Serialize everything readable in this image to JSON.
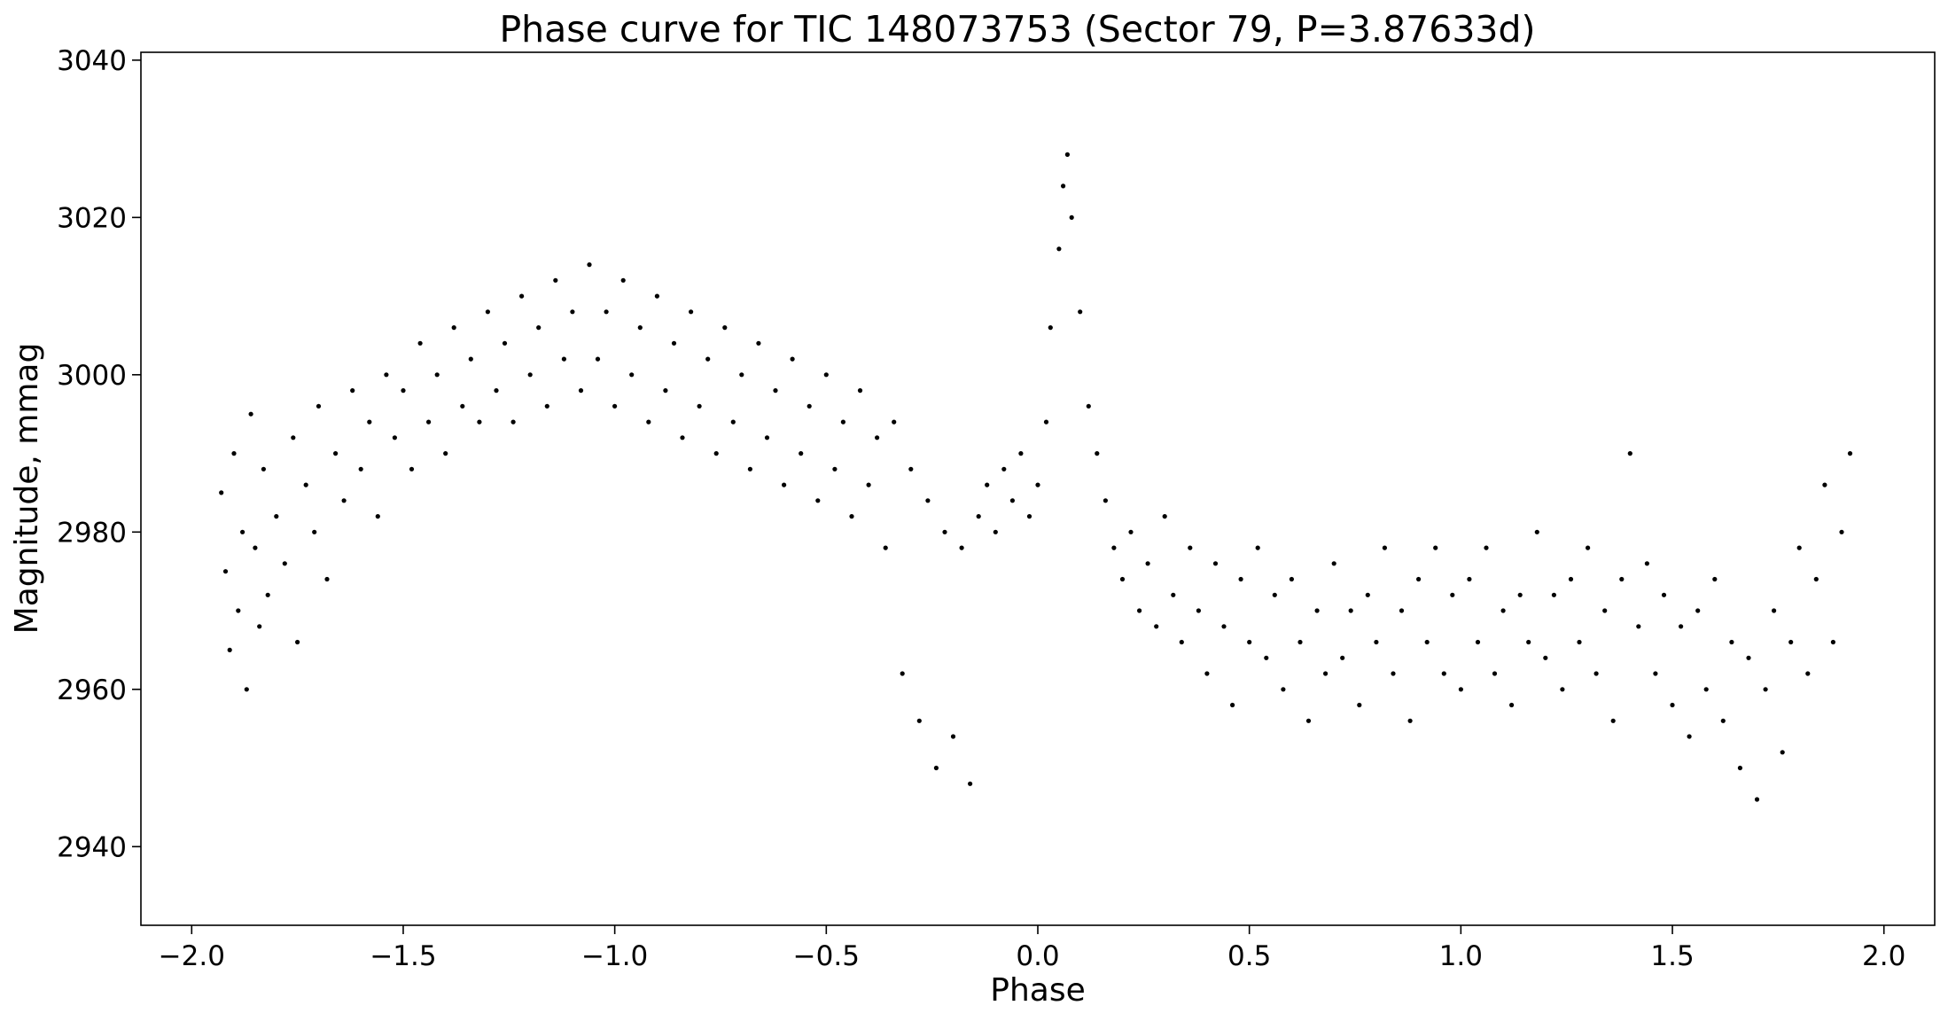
{
  "chart_data": {
    "type": "scatter",
    "title": "Phase curve for TIC 148073753 (Sector 79, P=3.87633d)",
    "xlabel": "Phase",
    "ylabel": "Magnitude, mmag",
    "xlim": [
      -2.12,
      2.12
    ],
    "ylim": [
      2930,
      3041
    ],
    "x_ticks": [
      -2.0,
      -1.5,
      -1.0,
      -0.5,
      0.0,
      0.5,
      1.0,
      1.5,
      2.0
    ],
    "x_tick_labels": [
      "−2.0",
      "−1.5",
      "−1.0",
      "−0.5",
      "0.0",
      "0.5",
      "1.0",
      "1.5",
      "2.0"
    ],
    "y_ticks": [
      2940,
      2960,
      2980,
      3000,
      3020,
      3040
    ],
    "y_tick_labels": [
      "2940",
      "2960",
      "2980",
      "3000",
      "3020",
      "3040"
    ],
    "grid": false,
    "legend": "none",
    "point_color": "#000000",
    "series": [
      {
        "points": [
          [
            -1.93,
            2985
          ],
          [
            -1.92,
            2975
          ],
          [
            -1.91,
            2965
          ],
          [
            -1.9,
            2990
          ],
          [
            -1.89,
            2970
          ],
          [
            -1.88,
            2980
          ],
          [
            -1.87,
            2960
          ],
          [
            -1.86,
            2995
          ],
          [
            -1.85,
            2978
          ],
          [
            -1.84,
            2968
          ],
          [
            -1.83,
            2988
          ],
          [
            -1.82,
            2972
          ],
          [
            -1.8,
            2982
          ],
          [
            -1.78,
            2976
          ],
          [
            -1.76,
            2992
          ],
          [
            -1.75,
            2966
          ],
          [
            -1.73,
            2986
          ],
          [
            -1.71,
            2980
          ],
          [
            -1.7,
            2996
          ],
          [
            -1.68,
            2974
          ],
          [
            -1.66,
            2990
          ],
          [
            -1.64,
            2984
          ],
          [
            -1.62,
            2998
          ],
          [
            -1.6,
            2988
          ],
          [
            -1.58,
            2994
          ],
          [
            -1.56,
            2982
          ],
          [
            -1.54,
            3000
          ],
          [
            -1.52,
            2992
          ],
          [
            -1.5,
            2998
          ],
          [
            -1.48,
            2988
          ],
          [
            -1.46,
            3004
          ],
          [
            -1.44,
            2994
          ],
          [
            -1.42,
            3000
          ],
          [
            -1.4,
            2990
          ],
          [
            -1.38,
            3006
          ],
          [
            -1.36,
            2996
          ],
          [
            -1.34,
            3002
          ],
          [
            -1.32,
            2994
          ],
          [
            -1.3,
            3008
          ],
          [
            -1.28,
            2998
          ],
          [
            -1.26,
            3004
          ],
          [
            -1.24,
            2994
          ],
          [
            -1.22,
            3010
          ],
          [
            -1.2,
            3000
          ],
          [
            -1.18,
            3006
          ],
          [
            -1.16,
            2996
          ],
          [
            -1.14,
            3012
          ],
          [
            -1.12,
            3002
          ],
          [
            -1.1,
            3008
          ],
          [
            -1.08,
            2998
          ],
          [
            -1.06,
            3014
          ],
          [
            -1.04,
            3002
          ],
          [
            -1.02,
            3008
          ],
          [
            -1.0,
            2996
          ],
          [
            -0.98,
            3012
          ],
          [
            -0.96,
            3000
          ],
          [
            -0.94,
            3006
          ],
          [
            -0.92,
            2994
          ],
          [
            -0.9,
            3010
          ],
          [
            -0.88,
            2998
          ],
          [
            -0.86,
            3004
          ],
          [
            -0.84,
            2992
          ],
          [
            -0.82,
            3008
          ],
          [
            -0.8,
            2996
          ],
          [
            -0.78,
            3002
          ],
          [
            -0.76,
            2990
          ],
          [
            -0.74,
            3006
          ],
          [
            -0.72,
            2994
          ],
          [
            -0.7,
            3000
          ],
          [
            -0.68,
            2988
          ],
          [
            -0.66,
            3004
          ],
          [
            -0.64,
            2992
          ],
          [
            -0.62,
            2998
          ],
          [
            -0.6,
            2986
          ],
          [
            -0.58,
            3002
          ],
          [
            -0.56,
            2990
          ],
          [
            -0.54,
            2996
          ],
          [
            -0.52,
            2984
          ],
          [
            -0.5,
            3000
          ],
          [
            -0.48,
            2988
          ],
          [
            -0.46,
            2994
          ],
          [
            -0.44,
            2982
          ],
          [
            -0.42,
            2998
          ],
          [
            -0.4,
            2986
          ],
          [
            -0.38,
            2992
          ],
          [
            -0.36,
            2978
          ],
          [
            -0.34,
            2994
          ],
          [
            -0.32,
            2962
          ],
          [
            -0.3,
            2988
          ],
          [
            -0.28,
            2956
          ],
          [
            -0.26,
            2984
          ],
          [
            -0.24,
            2950
          ],
          [
            -0.22,
            2980
          ],
          [
            -0.2,
            2954
          ],
          [
            -0.18,
            2978
          ],
          [
            -0.16,
            2948
          ],
          [
            -0.14,
            2982
          ],
          [
            -0.12,
            2986
          ],
          [
            -0.1,
            2980
          ],
          [
            -0.08,
            2988
          ],
          [
            -0.06,
            2984
          ],
          [
            -0.04,
            2990
          ],
          [
            -0.02,
            2982
          ],
          [
            0.0,
            2986
          ],
          [
            0.02,
            2994
          ],
          [
            0.03,
            3006
          ],
          [
            0.05,
            3016
          ],
          [
            0.06,
            3024
          ],
          [
            0.07,
            3028
          ],
          [
            0.08,
            3020
          ],
          [
            0.1,
            3008
          ],
          [
            0.12,
            2996
          ],
          [
            0.14,
            2990
          ],
          [
            0.16,
            2984
          ],
          [
            0.18,
            2978
          ],
          [
            0.2,
            2974
          ],
          [
            0.22,
            2980
          ],
          [
            0.24,
            2970
          ],
          [
            0.26,
            2976
          ],
          [
            0.28,
            2968
          ],
          [
            0.3,
            2982
          ],
          [
            0.32,
            2972
          ],
          [
            0.34,
            2966
          ],
          [
            0.36,
            2978
          ],
          [
            0.38,
            2970
          ],
          [
            0.4,
            2962
          ],
          [
            0.42,
            2976
          ],
          [
            0.44,
            2968
          ],
          [
            0.46,
            2958
          ],
          [
            0.48,
            2974
          ],
          [
            0.5,
            2966
          ],
          [
            0.52,
            2978
          ],
          [
            0.54,
            2964
          ],
          [
            0.56,
            2972
          ],
          [
            0.58,
            2960
          ],
          [
            0.6,
            2974
          ],
          [
            0.62,
            2966
          ],
          [
            0.64,
            2956
          ],
          [
            0.66,
            2970
          ],
          [
            0.68,
            2962
          ],
          [
            0.7,
            2976
          ],
          [
            0.72,
            2964
          ],
          [
            0.74,
            2970
          ],
          [
            0.76,
            2958
          ],
          [
            0.78,
            2972
          ],
          [
            0.8,
            2966
          ],
          [
            0.82,
            2978
          ],
          [
            0.84,
            2962
          ],
          [
            0.86,
            2970
          ],
          [
            0.88,
            2956
          ],
          [
            0.9,
            2974
          ],
          [
            0.92,
            2966
          ],
          [
            0.94,
            2978
          ],
          [
            0.96,
            2962
          ],
          [
            0.98,
            2972
          ],
          [
            1.0,
            2960
          ],
          [
            1.02,
            2974
          ],
          [
            1.04,
            2966
          ],
          [
            1.06,
            2978
          ],
          [
            1.08,
            2962
          ],
          [
            1.1,
            2970
          ],
          [
            1.12,
            2958
          ],
          [
            1.14,
            2972
          ],
          [
            1.16,
            2966
          ],
          [
            1.18,
            2980
          ],
          [
            1.2,
            2964
          ],
          [
            1.22,
            2972
          ],
          [
            1.24,
            2960
          ],
          [
            1.26,
            2974
          ],
          [
            1.28,
            2966
          ],
          [
            1.3,
            2978
          ],
          [
            1.32,
            2962
          ],
          [
            1.34,
            2970
          ],
          [
            1.36,
            2956
          ],
          [
            1.38,
            2974
          ],
          [
            1.4,
            2990
          ],
          [
            1.42,
            2968
          ],
          [
            1.44,
            2976
          ],
          [
            1.46,
            2962
          ],
          [
            1.48,
            2972
          ],
          [
            1.5,
            2958
          ],
          [
            1.52,
            2968
          ],
          [
            1.54,
            2954
          ],
          [
            1.56,
            2970
          ],
          [
            1.58,
            2960
          ],
          [
            1.6,
            2974
          ],
          [
            1.62,
            2956
          ],
          [
            1.64,
            2966
          ],
          [
            1.66,
            2950
          ],
          [
            1.68,
            2964
          ],
          [
            1.7,
            2946
          ],
          [
            1.72,
            2960
          ],
          [
            1.74,
            2970
          ],
          [
            1.76,
            2952
          ],
          [
            1.78,
            2966
          ],
          [
            1.8,
            2978
          ],
          [
            1.82,
            2962
          ],
          [
            1.84,
            2974
          ],
          [
            1.86,
            2986
          ],
          [
            1.88,
            2966
          ],
          [
            1.9,
            2980
          ],
          [
            1.92,
            2990
          ]
        ]
      }
    ]
  }
}
